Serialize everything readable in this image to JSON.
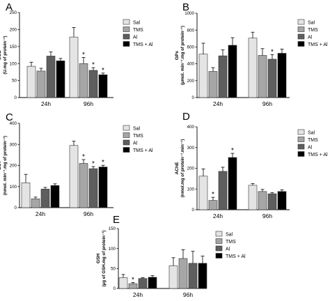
{
  "series_names": [
    "Sal",
    "TMS",
    "Al",
    "TMS + Al"
  ],
  "series_colors": [
    "#e4e4e4",
    "#a6a6a6",
    "#5e5e5e",
    "#000000"
  ],
  "chart_data": [
    {
      "type": "bar",
      "panel": "A",
      "ylabel_main": "SOD",
      "ylabel_unit": "(U.mg of protein⁻¹)",
      "categories": [
        "24h",
        "96h"
      ],
      "ylim": [
        0,
        250
      ],
      "yticks": [
        0,
        50,
        100,
        150,
        200,
        250
      ],
      "series": [
        {
          "name": "Sal",
          "values": [
            92,
            178
          ],
          "errors": [
            12,
            28
          ],
          "stars": [
            false,
            false
          ]
        },
        {
          "name": "TMS",
          "values": [
            78,
            100
          ],
          "errors": [
            8,
            18
          ],
          "stars": [
            false,
            true
          ]
        },
        {
          "name": "Al",
          "values": [
            122,
            80
          ],
          "errors": [
            12,
            8
          ],
          "stars": [
            false,
            true
          ]
        },
        {
          "name": "TMS + Al",
          "values": [
            108,
            67
          ],
          "errors": [
            7,
            5
          ],
          "stars": [
            false,
            true
          ]
        }
      ]
    },
    {
      "type": "bar",
      "panel": "B",
      "ylabel_main": "GPx",
      "ylabel_unit": "(µmol. min⁻¹.mg of protein⁻¹)",
      "categories": [
        "24h",
        "96h"
      ],
      "ylim": [
        0,
        1000
      ],
      "yticks": [
        0,
        200,
        400,
        600,
        800,
        1000
      ],
      "series": [
        {
          "name": "Sal",
          "values": [
            515,
            705
          ],
          "errors": [
            130,
            70
          ],
          "stars": [
            false,
            false
          ]
        },
        {
          "name": "TMS",
          "values": [
            310,
            500
          ],
          "errors": [
            45,
            80
          ],
          "stars": [
            false,
            false
          ]
        },
        {
          "name": "Al",
          "values": [
            495,
            455
          ],
          "errors": [
            70,
            55
          ],
          "stars": [
            false,
            true
          ]
        },
        {
          "name": "TMS + Al",
          "values": [
            620,
            525
          ],
          "errors": [
            90,
            50
          ],
          "stars": [
            false,
            false
          ]
        }
      ]
    },
    {
      "type": "bar",
      "panel": "C",
      "ylabel_main": "GST",
      "ylabel_unit": "(nmol. min⁻¹.mg of protein⁻¹)",
      "categories": [
        "24h",
        "96h"
      ],
      "ylim": [
        0,
        400
      ],
      "yticks": [
        0,
        100,
        200,
        300,
        400
      ],
      "series": [
        {
          "name": "Sal",
          "values": [
            118,
            295
          ],
          "errors": [
            40,
            20
          ],
          "stars": [
            false,
            false
          ]
        },
        {
          "name": "TMS",
          "values": [
            42,
            210
          ],
          "errors": [
            8,
            18
          ],
          "stars": [
            false,
            true
          ]
        },
        {
          "name": "Al",
          "values": [
            88,
            185
          ],
          "errors": [
            8,
            10
          ],
          "stars": [
            false,
            true
          ]
        },
        {
          "name": "TMS + Al",
          "values": [
            105,
            193
          ],
          "errors": [
            8,
            8
          ],
          "stars": [
            false,
            true
          ]
        }
      ]
    },
    {
      "type": "bar",
      "panel": "D",
      "ylabel_main": "AChE",
      "ylabel_unit": "(nmol.mg of protein⁻¹.min⁻¹)",
      "categories": [
        "24h",
        "96h"
      ],
      "ylim": [
        0,
        400
      ],
      "yticks": [
        0,
        100,
        200,
        300,
        400
      ],
      "series": [
        {
          "name": "Sal",
          "values": [
            162,
            118
          ],
          "errors": [
            35,
            8
          ],
          "stars": [
            false,
            false
          ]
        },
        {
          "name": "TMS",
          "values": [
            45,
            88
          ],
          "errors": [
            15,
            10
          ],
          "stars": [
            true,
            false
          ]
        },
        {
          "name": "Al",
          "values": [
            185,
            77
          ],
          "errors": [
            20,
            5
          ],
          "stars": [
            false,
            false
          ]
        },
        {
          "name": "TMS + Al",
          "values": [
            252,
            88
          ],
          "errors": [
            20,
            8
          ],
          "stars": [
            true,
            false
          ]
        }
      ]
    },
    {
      "type": "bar",
      "panel": "E",
      "ylabel_main": "GSH",
      "ylabel_unit": "(µg of GSH.mg of protein⁻¹)",
      "categories": [
        "24h",
        "96h"
      ],
      "ylim": [
        0,
        150
      ],
      "yticks": [
        0,
        50,
        100,
        150
      ],
      "series": [
        {
          "name": "Sal",
          "values": [
            27,
            57
          ],
          "errors": [
            8,
            20
          ],
          "stars": [
            false,
            false
          ]
        },
        {
          "name": "TMS",
          "values": [
            12,
            75
          ],
          "errors": [
            3,
            22
          ],
          "stars": [
            true,
            false
          ]
        },
        {
          "name": "Al",
          "values": [
            25,
            63
          ],
          "errors": [
            2,
            30
          ],
          "stars": [
            false,
            false
          ]
        },
        {
          "name": "TMS + Al",
          "values": [
            28,
            63
          ],
          "errors": [
            4,
            18
          ],
          "stars": [
            false,
            false
          ]
        }
      ]
    }
  ]
}
